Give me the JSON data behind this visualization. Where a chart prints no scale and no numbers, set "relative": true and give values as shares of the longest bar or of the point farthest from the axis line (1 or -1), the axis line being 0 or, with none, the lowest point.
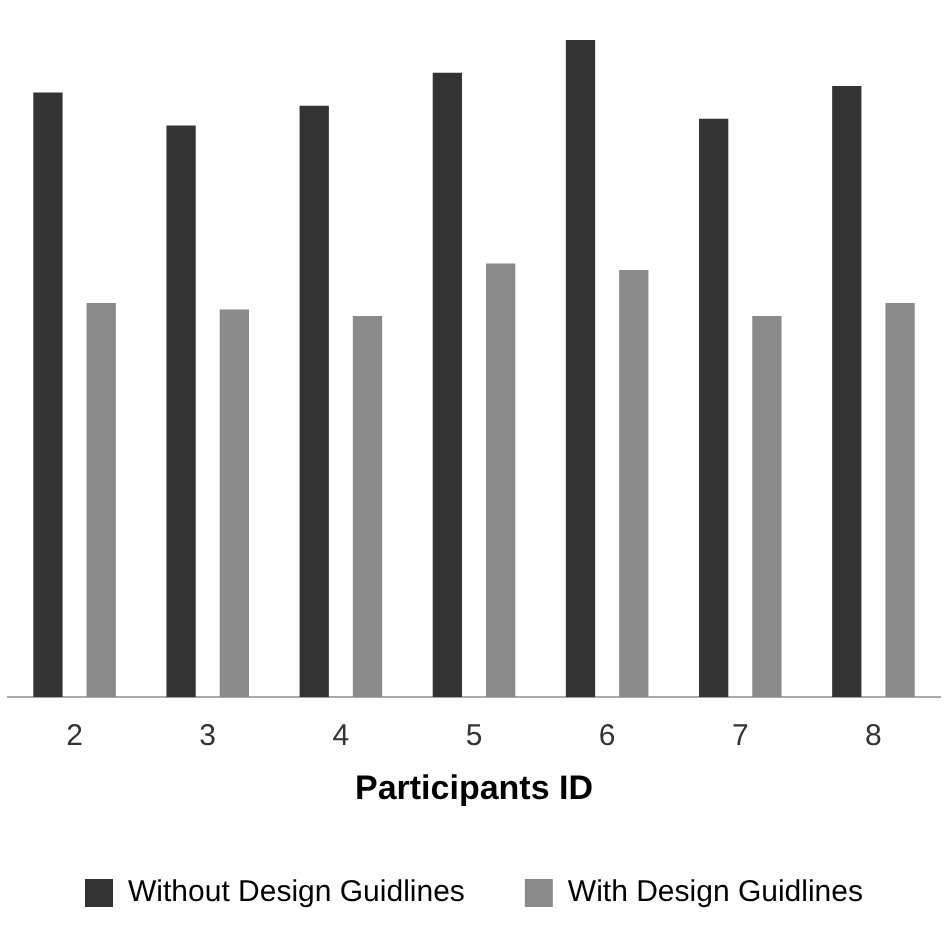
{
  "chart_data": {
    "type": "bar",
    "relative": true,
    "xlabel": "Participants ID",
    "categories": [
      "2",
      "3",
      "4",
      "5",
      "6",
      "7",
      "8"
    ],
    "legend": "bottom",
    "grid": false,
    "series": [
      {
        "name": "Without Design Guidlines",
        "color": "#333333",
        "values": [
          0.92,
          0.87,
          0.9,
          0.95,
          1,
          0.88,
          0.93
        ]
      },
      {
        "name": "With Design Guidlines",
        "color": "#8a8a8a",
        "values": [
          0.6,
          0.59,
          0.58,
          0.66,
          0.65,
          0.58,
          0.6
        ]
      }
    ]
  }
}
